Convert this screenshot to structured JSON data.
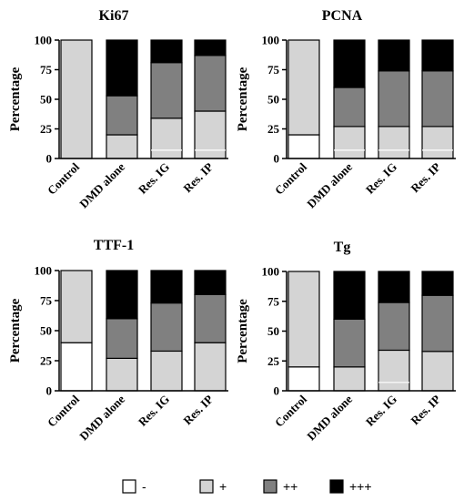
{
  "chart_data": [
    {
      "type": "bar",
      "stacked": true,
      "title": "Ki67",
      "ylabel": "Percentage",
      "xlabel": "",
      "ylim": [
        0,
        100
      ],
      "yticks": [
        "0",
        "25",
        "50",
        "75",
        "100"
      ],
      "categories": [
        "Control",
        "DMD alone",
        "Res. IG",
        "Res. IP"
      ],
      "series": [
        {
          "name": "-",
          "values": [
            0,
            0,
            0,
            0
          ]
        },
        {
          "name": "+",
          "values": [
            100,
            20,
            34,
            40
          ]
        },
        {
          "name": "++",
          "values": [
            0,
            33,
            47,
            47
          ]
        },
        {
          "name": "+++",
          "values": [
            0,
            47,
            19,
            13
          ]
        }
      ],
      "inner_lines": [
        null,
        null,
        7,
        7
      ]
    },
    {
      "type": "bar",
      "stacked": true,
      "title": "PCNA",
      "ylabel": "Percentage",
      "xlabel": "",
      "ylim": [
        0,
        100
      ],
      "yticks": [
        "0",
        "25",
        "50",
        "75",
        "100"
      ],
      "categories": [
        "Control",
        "DMD alone",
        "Res. IG",
        "Res. IP"
      ],
      "series": [
        {
          "name": "-",
          "values": [
            20,
            0,
            0,
            0
          ]
        },
        {
          "name": "+",
          "values": [
            80,
            27,
            27,
            27
          ]
        },
        {
          "name": "++",
          "values": [
            0,
            33,
            47,
            47
          ]
        },
        {
          "name": "+++",
          "values": [
            0,
            40,
            26,
            26
          ]
        }
      ],
      "inner_lines": [
        null,
        7,
        7,
        7
      ]
    },
    {
      "type": "bar",
      "stacked": true,
      "title": "TTF-1",
      "ylabel": "Percentage",
      "xlabel": "",
      "ylim": [
        0,
        100
      ],
      "yticks": [
        "0",
        "25",
        "50",
        "75",
        "100"
      ],
      "categories": [
        "Control",
        "DMD alone",
        "Res. IG",
        "Res. IP"
      ],
      "series": [
        {
          "name": "-",
          "values": [
            40,
            0,
            0,
            0
          ]
        },
        {
          "name": "+",
          "values": [
            60,
            27,
            33,
            40
          ]
        },
        {
          "name": "++",
          "values": [
            0,
            33,
            40,
            40
          ]
        },
        {
          "name": "+++",
          "values": [
            0,
            40,
            27,
            20
          ]
        }
      ],
      "inner_lines": [
        null,
        null,
        null,
        null
      ]
    },
    {
      "type": "bar",
      "stacked": true,
      "title": "Tg",
      "ylabel": "Percentage",
      "xlabel": "",
      "ylim": [
        0,
        100
      ],
      "yticks": [
        "0",
        "25",
        "50",
        "75",
        "100"
      ],
      "categories": [
        "Control",
        "DMD alone",
        "Res. IG",
        "Res. IP"
      ],
      "series": [
        {
          "name": "-",
          "values": [
            20,
            0,
            0,
            0
          ]
        },
        {
          "name": "+",
          "values": [
            80,
            20,
            34,
            33
          ]
        },
        {
          "name": "++",
          "values": [
            0,
            40,
            40,
            47
          ]
        },
        {
          "name": "+++",
          "values": [
            0,
            40,
            26,
            20
          ]
        }
      ],
      "inner_lines": [
        null,
        null,
        7,
        null
      ]
    }
  ],
  "legend": {
    "position": "bottom",
    "items": [
      {
        "label": "-",
        "color": "#ffffff"
      },
      {
        "label": "+",
        "color": "#d4d4d4"
      },
      {
        "label": "++",
        "color": "#808080"
      },
      {
        "label": "+++",
        "color": "#000000"
      }
    ]
  },
  "colors": [
    "#ffffff",
    "#d4d4d4",
    "#808080",
    "#000000"
  ]
}
